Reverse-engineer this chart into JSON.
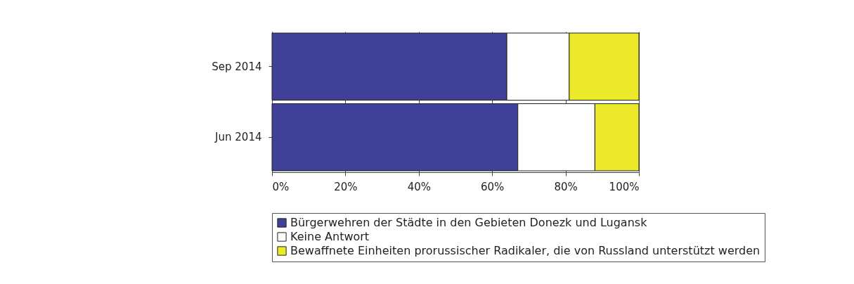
{
  "chart_data": {
    "type": "bar",
    "orientation": "horizontal",
    "stacked": true,
    "categories": [
      "Sep 2014",
      "Jun 2014"
    ],
    "series": [
      {
        "name": "Bürgerwehren der Städte in den Gebieten Donezk und Lugansk",
        "color": "#404099",
        "values": [
          64,
          67
        ]
      },
      {
        "name": "Keine Antwort",
        "color": "#ffffff",
        "values": [
          17,
          21
        ]
      },
      {
        "name": "Bewaffnete Einheiten prorussischer Radikaler, die von Russland unterstützt werden",
        "color": "#ece82a",
        "values": [
          19,
          12
        ]
      }
    ],
    "xlim": [
      0,
      100
    ],
    "xticks": [
      {
        "value": 0,
        "label": "0%"
      },
      {
        "value": 20,
        "label": "20%"
      },
      {
        "value": 40,
        "label": "40%"
      },
      {
        "value": 60,
        "label": "60%"
      },
      {
        "value": 80,
        "label": "80%"
      },
      {
        "value": 100,
        "label": "100%"
      }
    ],
    "grid": "x",
    "legend": "bottom"
  }
}
